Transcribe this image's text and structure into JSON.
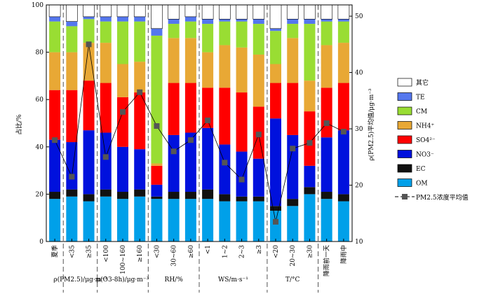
{
  "chart_data": {
    "type": "bar",
    "stacked": true,
    "ylabel": "占比/%",
    "y2label": "ρ(PM2.5)平均值/μg·m⁻³",
    "ylim": [
      0,
      100
    ],
    "y2lim": [
      10,
      52
    ],
    "yticks": [
      "0",
      "20",
      "40",
      "60",
      "80",
      "100"
    ],
    "y2ticks": [
      "10",
      "20",
      "30",
      "40",
      "50"
    ],
    "categories": [
      "夏季",
      "<35",
      "≥35",
      "<100",
      "100~160",
      "≥160",
      "<30",
      "30~60",
      "≥60",
      "<1",
      "1~2",
      "2~3",
      "≥3",
      "<20",
      "20~30",
      "≥30",
      "降雨前一天",
      "降雨中"
    ],
    "groups": [
      {
        "label": "ρ(PM2.5)/μg·m⁻³",
        "start": 1,
        "end": 2
      },
      {
        "label": "ρ(O3-8h)/μg·m⁻³",
        "start": 3,
        "end": 5
      },
      {
        "label": "RH/%",
        "start": 6,
        "end": 8
      },
      {
        "label": "WS/m·s⁻¹",
        "start": 9,
        "end": 12
      },
      {
        "label": "T/°C",
        "start": 13,
        "end": 15
      }
    ],
    "series": [
      {
        "name": "OM",
        "color": "#00a0e9",
        "values": [
          18,
          19,
          17,
          19,
          18,
          19,
          18,
          18,
          18,
          18,
          17,
          17,
          17,
          13,
          15,
          20,
          18,
          17
        ]
      },
      {
        "name": "EC",
        "color": "#111111",
        "values": [
          3,
          3,
          3,
          3,
          3,
          3,
          1,
          3,
          3,
          4,
          3,
          2,
          2,
          2,
          3,
          3,
          3,
          3
        ]
      },
      {
        "name": "NO3⁻",
        "color": "#0011dd",
        "values": [
          22,
          20,
          27,
          24,
          19,
          17,
          5,
          24,
          25,
          26,
          21,
          19,
          16,
          37,
          27,
          9,
          23,
          27
        ]
      },
      {
        "name": "SO4²⁻",
        "color": "#ff0000",
        "values": [
          21,
          22,
          21,
          21,
          21,
          24,
          8,
          22,
          21,
          17,
          24,
          25,
          22,
          15,
          22,
          23,
          21,
          20
        ]
      },
      {
        "name": "NH4⁺",
        "color": "#e8a835",
        "values": [
          16,
          16,
          16,
          17,
          14,
          13,
          1,
          19,
          19,
          15,
          18,
          19,
          22,
          8,
          19,
          13,
          18,
          17
        ]
      },
      {
        "name": "CM",
        "color": "#99dd33",
        "values": [
          13,
          11,
          10,
          9,
          18,
          17,
          54,
          6,
          7,
          12,
          10,
          11,
          13,
          14,
          6,
          24,
          10,
          9
        ]
      },
      {
        "name": "TE",
        "color": "#5577ee",
        "values": [
          2,
          2,
          1,
          2,
          2,
          2,
          3,
          2,
          2,
          2,
          1,
          1,
          2,
          1,
          2,
          2,
          1,
          1
        ]
      },
      {
        "name": "其它",
        "color": "#ffffff",
        "values": [
          5,
          7,
          5,
          5,
          5,
          5,
          10,
          6,
          5,
          6,
          6,
          6,
          6,
          10,
          6,
          6,
          6,
          6
        ]
      }
    ],
    "line": {
      "name": "PM2.5浓度平均值",
      "color": "#555555",
      "values": [
        28.0,
        21.5,
        45.0,
        25.0,
        33.0,
        36.5,
        30.5,
        26.0,
        28.0,
        31.5,
        24.0,
        21.0,
        29.0,
        13.5,
        26.5,
        27.5,
        31.0,
        29.5
      ]
    },
    "legend": {
      "position": "right",
      "order": [
        "其它",
        "TE",
        "CM",
        "NH4⁺",
        "SO4²⁻",
        "NO3⁻",
        "EC",
        "OM",
        "PM2.5浓度平均值"
      ]
    }
  }
}
